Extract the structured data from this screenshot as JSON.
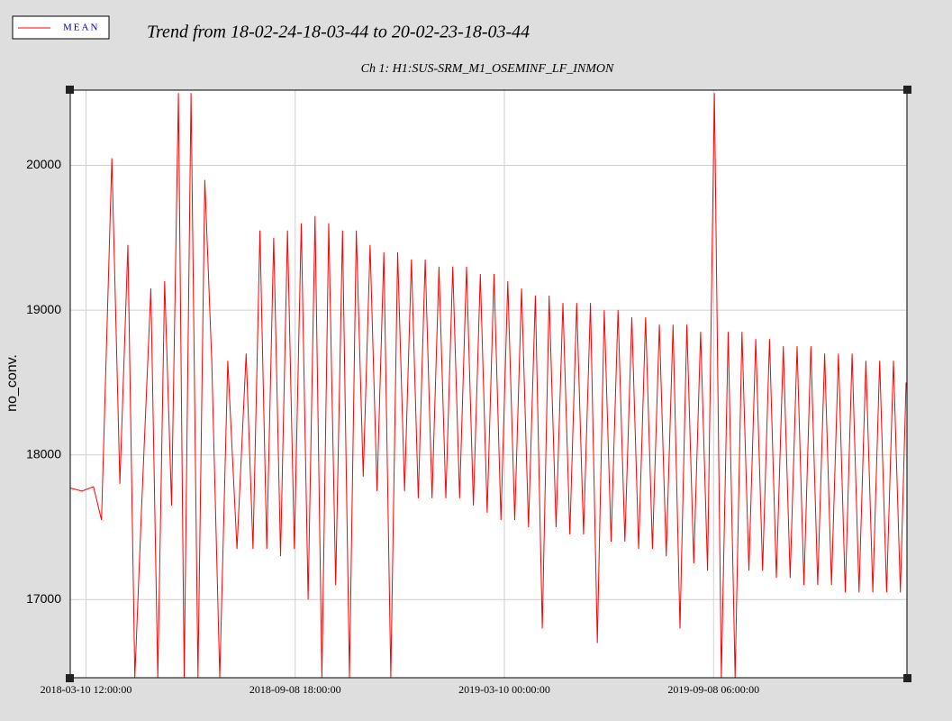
{
  "chart_data": {
    "type": "line",
    "title": "Trend from 18-02-24-18-03-44 to 20-02-23-18-03-44",
    "subtitle": "Ch 1: H1:SUS-SRM_M1_OSEMINF_LF_INMON",
    "y_label": "no_conv.",
    "xlim": [
      "2018-02-24 18:03:44",
      "2020-02-23 18:03:44"
    ],
    "xticks": [
      "2018-03-10 12:00:00",
      "2018-09-08 18:00:00",
      "2019-03-10 00:00:00",
      "2019-09-08 06:00:00"
    ],
    "ylim": [
      16460,
      20520
    ],
    "yticks": [
      17000,
      18000,
      19000,
      20000
    ],
    "grid": true,
    "legend": "top-left",
    "x": [
      "2018-02-25 00:00:00",
      "2018-03-07 00:00:00",
      "2018-03-17 00:00:00",
      "2018-03-24 00:00:00",
      "2018-04-02 00:00:00",
      "2018-04-09 00:00:00",
      "2018-04-16 00:00:00",
      "2018-04-22 00:00:00",
      "2018-04-28 00:00:00",
      "2018-05-06 00:00:00",
      "2018-05-12 00:00:00",
      "2018-05-18 00:00:00",
      "2018-05-24 00:00:00",
      "2018-05-30 00:00:00",
      "2018-06-04 00:00:00",
      "2018-06-10 00:00:00",
      "2018-06-16 00:00:00",
      "2018-06-22 00:00:00",
      "2018-06-28 00:00:00",
      "2018-07-05 00:00:00",
      "2018-07-12 00:00:00",
      "2018-07-20 00:00:00",
      "2018-07-28 00:00:00",
      "2018-08-03 00:00:00",
      "2018-08-09 00:00:00",
      "2018-08-15 00:00:00",
      "2018-08-21 00:00:00",
      "2018-08-27 00:00:00",
      "2018-09-02 00:00:00",
      "2018-09-08 00:00:00",
      "2018-09-14 00:00:00",
      "2018-09-20 00:00:00",
      "2018-09-26 00:00:00",
      "2018-10-02 00:00:00",
      "2018-10-08 00:00:00",
      "2018-10-14 00:00:00",
      "2018-10-20 00:00:00",
      "2018-10-26 00:00:00",
      "2018-11-01 00:00:00",
      "2018-11-07 00:00:00",
      "2018-11-13 00:00:00",
      "2018-11-19 00:00:00",
      "2018-11-25 00:00:00",
      "2018-12-01 00:00:00",
      "2018-12-07 00:00:00",
      "2018-12-13 00:00:00",
      "2018-12-19 00:00:00",
      "2018-12-25 00:00:00",
      "2018-12-31 00:00:00",
      "2019-01-06 00:00:00",
      "2019-01-12 00:00:00",
      "2019-01-18 00:00:00",
      "2019-01-24 00:00:00",
      "2019-01-30 00:00:00",
      "2019-02-05 00:00:00",
      "2019-02-11 00:00:00",
      "2019-02-17 00:00:00",
      "2019-02-23 00:00:00",
      "2019-03-01 00:00:00",
      "2019-03-07 00:00:00",
      "2019-03-13 00:00:00",
      "2019-03-19 00:00:00",
      "2019-03-25 00:00:00",
      "2019-03-31 00:00:00",
      "2019-04-06 00:00:00",
      "2019-04-12 00:00:00",
      "2019-04-18 00:00:00",
      "2019-04-24 00:00:00",
      "2019-04-30 00:00:00",
      "2019-05-06 00:00:00",
      "2019-05-12 00:00:00",
      "2019-05-18 00:00:00",
      "2019-05-24 00:00:00",
      "2019-05-30 00:00:00",
      "2019-06-05 00:00:00",
      "2019-06-11 00:00:00",
      "2019-06-17 00:00:00",
      "2019-06-23 00:00:00",
      "2019-06-29 00:00:00",
      "2019-07-05 00:00:00",
      "2019-07-11 00:00:00",
      "2019-07-17 00:00:00",
      "2019-07-23 00:00:00",
      "2019-07-29 00:00:00",
      "2019-08-04 00:00:00",
      "2019-08-10 00:00:00",
      "2019-08-16 00:00:00",
      "2019-08-22 00:00:00",
      "2019-08-28 00:00:00",
      "2019-09-03 00:00:00",
      "2019-09-09 00:00:00",
      "2019-09-15 00:00:00",
      "2019-09-21 00:00:00",
      "2019-09-27 00:00:00",
      "2019-10-03 00:00:00",
      "2019-10-09 00:00:00",
      "2019-10-15 00:00:00",
      "2019-10-21 00:00:00",
      "2019-10-27 00:00:00",
      "2019-11-02 00:00:00",
      "2019-11-08 00:00:00",
      "2019-11-14 00:00:00",
      "2019-11-20 00:00:00",
      "2019-11-26 00:00:00",
      "2019-12-02 00:00:00",
      "2019-12-08 00:00:00",
      "2019-12-14 00:00:00",
      "2019-12-20 00:00:00",
      "2019-12-26 00:00:00",
      "2020-01-01 00:00:00",
      "2020-01-07 00:00:00",
      "2020-01-13 00:00:00",
      "2020-01-19 00:00:00",
      "2020-01-25 00:00:00",
      "2020-01-31 00:00:00",
      "2020-02-06 00:00:00",
      "2020-02-12 00:00:00",
      "2020-02-18 00:00:00",
      "2020-02-23 00:00:00"
    ],
    "series": [
      {
        "name": "MEAN",
        "color": "#ff0000",
        "values": [
          17770,
          17750,
          17780,
          17550,
          20050,
          17800,
          19450,
          16460,
          17650,
          19150,
          16460,
          19200,
          17650,
          20500,
          16460,
          20500,
          16460,
          19900,
          18650,
          16460,
          18650,
          17350,
          18700,
          17350,
          19550,
          17350,
          19500,
          17300,
          19550,
          17350,
          19600,
          17000,
          19650,
          16460,
          19600,
          17100,
          19550,
          16460,
          19550,
          17850,
          19450,
          17750,
          19400,
          16460,
          19400,
          17750,
          19350,
          17700,
          19350,
          17700,
          19300,
          17700,
          19300,
          17700,
          19300,
          17650,
          19250,
          17600,
          19250,
          17550,
          19200,
          17550,
          19150,
          17500,
          19100,
          16800,
          19100,
          17500,
          19050,
          17450,
          19050,
          17450,
          19050,
          16700,
          19000,
          17400,
          19000,
          17400,
          18950,
          17350,
          18950,
          17350,
          18900,
          17300,
          18900,
          16800,
          18900,
          17250,
          18850,
          17200,
          20500,
          16460,
          18850,
          16460,
          18850,
          17200,
          18800,
          17200,
          18800,
          17150,
          18750,
          17150,
          18750,
          17100,
          18750,
          17100,
          18700,
          17100,
          18700,
          17050,
          18700,
          17050,
          18650,
          17050,
          18650,
          17050,
          18650,
          17050,
          18500
        ]
      }
    ]
  }
}
